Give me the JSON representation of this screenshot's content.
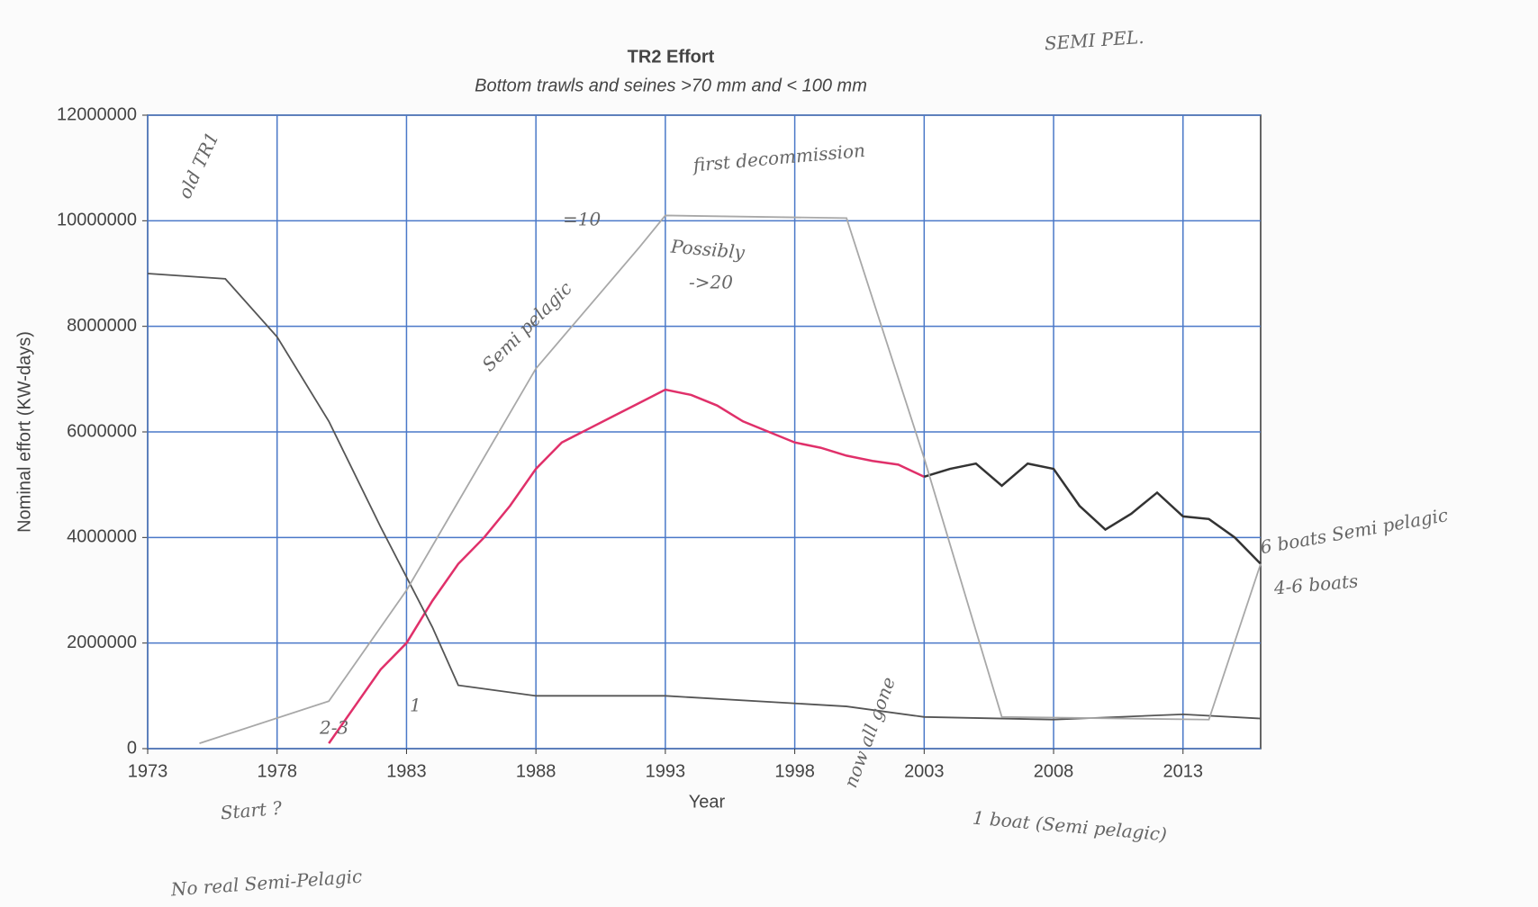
{
  "chart_data": {
    "type": "line",
    "title": "TR2 Effort",
    "subtitle": "Bottom trawls and seines >70 mm and < 100 mm",
    "x_label": "Year",
    "y_label": "Nominal effort (KW-days)",
    "xlim": [
      1973,
      2016
    ],
    "xticks": [
      1973,
      1978,
      1983,
      1988,
      1993,
      1998,
      2003,
      2008,
      2013
    ],
    "ylim": [
      0,
      12000000
    ],
    "yticks": [
      0,
      2000000,
      4000000,
      6000000,
      8000000,
      10000000,
      12000000
    ],
    "grid": true,
    "grid_color": "#4a78c8",
    "series": [
      {
        "color": "#e0306a",
        "x": [
          1980,
          1981,
          1982,
          1983,
          1984,
          1985,
          1986,
          1987,
          1988,
          1989,
          1990,
          1991,
          1992,
          1993,
          1994,
          1995,
          1996,
          1997,
          1998,
          1999,
          2000,
          2001,
          2002,
          2003
        ],
        "values": [
          100000,
          800000,
          1500000,
          2000000,
          2800000,
          3500000,
          4000000,
          4600000,
          5300000,
          5800000,
          6050000,
          6300000,
          6550000,
          6800000,
          6700000,
          6500000,
          6200000,
          6000000,
          5800000,
          5700000,
          5550000,
          5450000,
          5380000,
          5150000
        ]
      },
      {
        "color": "#333333",
        "x": [
          2003,
          2004,
          2005,
          2006,
          2007,
          2008,
          2009,
          2010,
          2011,
          2012,
          2013,
          2014,
          2015,
          2016
        ],
        "values": [
          5150000,
          5300000,
          5400000,
          4980000,
          5400000,
          5300000,
          4600000,
          4150000,
          4450000,
          4850000,
          4400000,
          4350000,
          4000000,
          3500000
        ]
      },
      {
        "color": "#555555",
        "x": [
          1973,
          1976,
          1978,
          1980,
          1982,
          1984,
          1985,
          1988,
          1993,
          2000,
          2003,
          2008,
          2013,
          2016
        ],
        "values": [
          9000000,
          8900000,
          7800000,
          6200000,
          4200000,
          2300000,
          1200000,
          1000000,
          1000000,
          800000,
          600000,
          550000,
          650000,
          570000
        ]
      },
      {
        "color": "#a8a8a8",
        "x": [
          1975,
          1980,
          1983,
          1988,
          1992,
          1993,
          2000,
          2003,
          2006,
          2014,
          2016
        ],
        "values": [
          100000,
          900000,
          3000000,
          7200000,
          9500000,
          10100000,
          10050000,
          5500000,
          600000,
          550000,
          3500000
        ]
      }
    ],
    "annotations": [
      "SEMI PEL.",
      "old TR1",
      "Semi pelagic",
      "first decommission",
      "=10",
      "Possibly",
      "->20",
      "1",
      "2-3",
      "Start ?",
      "No real Semi-Pelagic",
      "now all gone",
      "1 boat (Semi pelagic)",
      "6 boats Semi pelagic",
      "4-6 boats"
    ]
  }
}
